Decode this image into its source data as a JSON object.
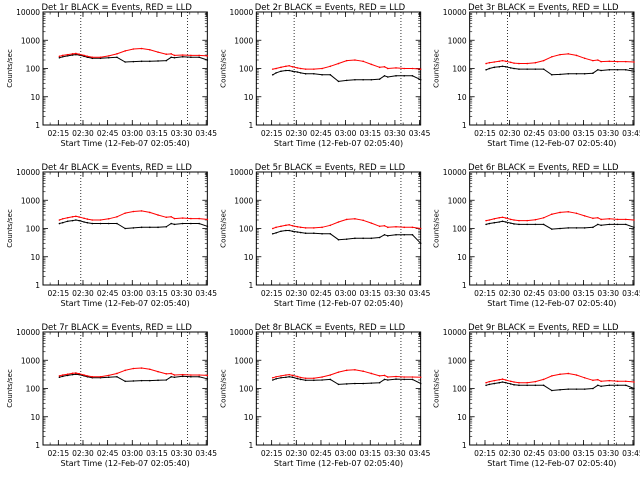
{
  "colors": {
    "events": "#000000",
    "lld": "#ff0000",
    "background": "#ffffff"
  },
  "common": {
    "xlabel": "Start Time (12-Feb-07 02:05:40)",
    "ylabel": "Counts/sec",
    "xticks": [
      "02:15",
      "02:30",
      "02:45",
      "03:00",
      "03:15",
      "03:30",
      "03:45"
    ],
    "yticks": [
      "1",
      "10",
      "100",
      "1000",
      "10000"
    ]
  },
  "chart_data": [
    {
      "type": "line",
      "title": "Det 1r BLACK = Events, RED = LLD",
      "x_minutes": [
        10,
        12,
        15,
        18,
        20,
        22,
        25,
        27,
        30,
        35,
        40,
        45,
        50,
        55,
        60,
        65,
        70,
        75,
        78,
        80,
        85,
        90,
        95,
        100
      ],
      "series": [
        {
          "name": "Events",
          "values": [
            240,
            260,
            280,
            300,
            310,
            300,
            270,
            250,
            230,
            230,
            240,
            250,
            170,
            175,
            180,
            180,
            185,
            190,
            250,
            240,
            260,
            250,
            250,
            200
          ]
        },
        {
          "name": "LLD",
          "values": [
            270,
            290,
            310,
            330,
            340,
            320,
            290,
            270,
            250,
            250,
            280,
            330,
            420,
            490,
            510,
            460,
            380,
            320,
            330,
            290,
            300,
            290,
            290,
            280
          ]
        }
      ],
      "ylim": [
        1,
        10000
      ],
      "ylog": true,
      "vlines": [
        23,
        88
      ]
    },
    {
      "type": "line",
      "title": "Det 2r BLACK = Events, RED = LLD",
      "x_minutes": [
        10,
        12,
        15,
        18,
        20,
        22,
        25,
        27,
        30,
        35,
        40,
        45,
        50,
        55,
        60,
        65,
        70,
        75,
        78,
        80,
        85,
        90,
        95,
        100
      ],
      "series": [
        {
          "name": "Events",
          "values": [
            60,
            70,
            80,
            85,
            85,
            80,
            75,
            70,
            65,
            65,
            60,
            60,
            35,
            38,
            40,
            40,
            40,
            42,
            55,
            50,
            55,
            55,
            55,
            40
          ]
        },
        {
          "name": "LLD",
          "values": [
            95,
            100,
            110,
            120,
            125,
            115,
            105,
            100,
            95,
            95,
            100,
            120,
            150,
            190,
            200,
            180,
            140,
            110,
            115,
            100,
            105,
            100,
            100,
            95
          ]
        }
      ],
      "ylim": [
        1,
        10000
      ],
      "ylog": true,
      "vlines": [
        23,
        88
      ]
    },
    {
      "type": "line",
      "title": "Det 3r BLACK = Events, RED = LLD",
      "x_minutes": [
        10,
        12,
        15,
        18,
        20,
        22,
        25,
        27,
        30,
        35,
        40,
        45,
        50,
        55,
        60,
        65,
        70,
        75,
        78,
        80,
        85,
        90,
        95,
        100
      ],
      "series": [
        {
          "name": "Events",
          "values": [
            90,
            100,
            110,
            115,
            120,
            115,
            105,
            100,
            95,
            95,
            95,
            95,
            60,
            62,
            65,
            65,
            65,
            68,
            90,
            85,
            90,
            90,
            90,
            80
          ]
        },
        {
          "name": "LLD",
          "values": [
            150,
            160,
            170,
            180,
            190,
            180,
            165,
            155,
            150,
            150,
            160,
            190,
            260,
            310,
            330,
            290,
            230,
            190,
            200,
            175,
            180,
            175,
            175,
            170
          ]
        }
      ],
      "ylim": [
        1,
        10000
      ],
      "ylog": true,
      "vlines": [
        23,
        88
      ]
    },
    {
      "type": "line",
      "title": "Det 4r BLACK = Events, RED = LLD",
      "x_minutes": [
        10,
        12,
        15,
        18,
        20,
        22,
        25,
        27,
        30,
        35,
        40,
        45,
        50,
        55,
        60,
        65,
        70,
        75,
        78,
        80,
        85,
        90,
        95,
        100
      ],
      "series": [
        {
          "name": "Events",
          "values": [
            150,
            160,
            180,
            190,
            200,
            190,
            170,
            160,
            150,
            150,
            150,
            150,
            100,
            105,
            110,
            110,
            110,
            115,
            150,
            140,
            150,
            150,
            150,
            120
          ]
        },
        {
          "name": "LLD",
          "values": [
            200,
            220,
            240,
            260,
            270,
            255,
            230,
            215,
            200,
            200,
            220,
            260,
            350,
            400,
            420,
            370,
            300,
            250,
            260,
            225,
            235,
            225,
            225,
            210
          ]
        }
      ],
      "ylim": [
        1,
        10000
      ],
      "ylog": true,
      "vlines": [
        23,
        88
      ]
    },
    {
      "type": "line",
      "title": "Det 5r BLACK = Events, RED = LLD",
      "x_minutes": [
        10,
        12,
        15,
        18,
        20,
        22,
        25,
        27,
        30,
        35,
        40,
        45,
        50,
        55,
        60,
        65,
        70,
        75,
        78,
        80,
        85,
        90,
        95,
        100
      ],
      "series": [
        {
          "name": "Events",
          "values": [
            65,
            70,
            80,
            85,
            85,
            80,
            75,
            72,
            68,
            68,
            65,
            65,
            40,
            42,
            45,
            45,
            45,
            48,
            60,
            55,
            60,
            60,
            60,
            30
          ]
        },
        {
          "name": "LLD",
          "values": [
            100,
            110,
            120,
            130,
            135,
            125,
            115,
            110,
            105,
            105,
            110,
            130,
            170,
            210,
            220,
            195,
            155,
            120,
            125,
            110,
            115,
            110,
            110,
            100
          ]
        }
      ],
      "ylim": [
        1,
        10000
      ],
      "ylog": true,
      "vlines": [
        23,
        88
      ]
    },
    {
      "type": "line",
      "title": "Det 6r BLACK = Events, RED = LLD",
      "x_minutes": [
        10,
        12,
        15,
        18,
        20,
        22,
        25,
        27,
        30,
        35,
        40,
        45,
        50,
        55,
        60,
        65,
        70,
        75,
        78,
        80,
        85,
        90,
        95,
        100
      ],
      "series": [
        {
          "name": "Events",
          "values": [
            140,
            150,
            160,
            170,
            180,
            170,
            155,
            145,
            140,
            140,
            140,
            140,
            95,
            100,
            105,
            105,
            105,
            110,
            140,
            130,
            140,
            140,
            140,
            110
          ]
        },
        {
          "name": "LLD",
          "values": [
            190,
            200,
            220,
            240,
            250,
            235,
            210,
            200,
            190,
            190,
            205,
            240,
            320,
            370,
            390,
            345,
            280,
            230,
            240,
            210,
            220,
            210,
            210,
            200
          ]
        }
      ],
      "ylim": [
        1,
        10000
      ],
      "ylog": true,
      "vlines": [
        23,
        88
      ]
    },
    {
      "type": "line",
      "title": "Det 7r BLACK = Events, RED = LLD",
      "x_minutes": [
        10,
        12,
        15,
        18,
        20,
        22,
        25,
        27,
        30,
        35,
        40,
        45,
        50,
        55,
        60,
        65,
        70,
        75,
        78,
        80,
        85,
        90,
        95,
        100
      ],
      "series": [
        {
          "name": "Events",
          "values": [
            250,
            270,
            290,
            310,
            320,
            310,
            280,
            260,
            240,
            240,
            250,
            260,
            180,
            185,
            190,
            190,
            195,
            200,
            260,
            250,
            270,
            260,
            260,
            220
          ]
        },
        {
          "name": "LLD",
          "values": [
            280,
            300,
            320,
            345,
            355,
            335,
            300,
            280,
            260,
            260,
            290,
            340,
            440,
            510,
            530,
            480,
            395,
            330,
            340,
            300,
            310,
            300,
            300,
            290
          ]
        }
      ],
      "ylim": [
        1,
        10000
      ],
      "ylog": true,
      "vlines": [
        23,
        88
      ]
    },
    {
      "type": "line",
      "title": "Det 8r BLACK = Events, RED = LLD",
      "x_minutes": [
        10,
        12,
        15,
        18,
        20,
        22,
        25,
        27,
        30,
        35,
        40,
        45,
        50,
        55,
        60,
        65,
        70,
        75,
        78,
        80,
        85,
        90,
        95,
        100
      ],
      "series": [
        {
          "name": "Events",
          "values": [
            200,
            220,
            240,
            250,
            260,
            250,
            225,
            210,
            195,
            195,
            200,
            210,
            140,
            145,
            150,
            150,
            155,
            160,
            210,
            200,
            215,
            210,
            210,
            150
          ]
        },
        {
          "name": "LLD",
          "values": [
            240,
            260,
            280,
            300,
            310,
            290,
            265,
            245,
            230,
            230,
            255,
            300,
            380,
            440,
            460,
            410,
            340,
            280,
            290,
            255,
            265,
            255,
            255,
            250
          ]
        }
      ],
      "ylim": [
        1,
        10000
      ],
      "ylog": true,
      "vlines": [
        23,
        88
      ]
    },
    {
      "type": "line",
      "title": "Det 9r BLACK = Events, RED = LLD",
      "x_minutes": [
        10,
        12,
        15,
        18,
        20,
        22,
        25,
        27,
        30,
        35,
        40,
        45,
        50,
        55,
        60,
        65,
        70,
        75,
        78,
        80,
        85,
        90,
        95,
        100
      ],
      "series": [
        {
          "name": "Events",
          "values": [
            130,
            140,
            150,
            160,
            170,
            160,
            145,
            135,
            130,
            130,
            130,
            130,
            85,
            90,
            95,
            95,
            95,
            100,
            130,
            120,
            130,
            130,
            130,
            100
          ]
        },
        {
          "name": "LLD",
          "values": [
            160,
            175,
            190,
            205,
            215,
            200,
            180,
            170,
            160,
            160,
            175,
            210,
            280,
            320,
            340,
            300,
            240,
            195,
            205,
            180,
            190,
            180,
            180,
            170
          ]
        }
      ],
      "ylim": [
        1,
        10000
      ],
      "ylog": true,
      "vlines": [
        23,
        88
      ]
    }
  ]
}
